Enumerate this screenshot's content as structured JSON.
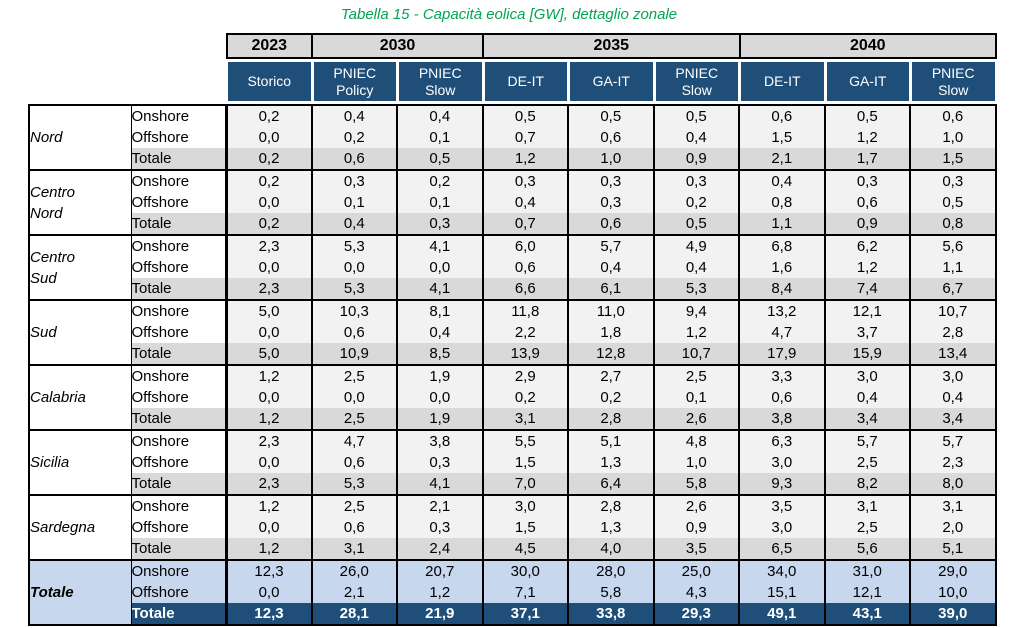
{
  "title": "Tabella 15 - Capacità eolica [GW], dettaglio zonale",
  "colors": {
    "title_green": "#00A551",
    "header_navy": "#1F4E79",
    "year_band_gray": "#D9D9D9",
    "subtotal_gray": "#D9D9D9",
    "cell_light_gray": "#F2F2F2",
    "total_light_blue": "#C7D7EE"
  },
  "header": {
    "year_groups": [
      {
        "label": "2023"
      },
      {
        "label": "2030"
      },
      {
        "label": "2035"
      },
      {
        "label": "2040"
      }
    ],
    "scenarios": [
      "Storico",
      "PNIEC\nPolicy",
      "PNIEC\nSlow",
      "DE-IT",
      "GA-IT",
      "PNIEC\nSlow",
      "DE-IT",
      "GA-IT",
      "PNIEC\nSlow"
    ]
  },
  "zones": [
    {
      "name": "Nord",
      "rows": [
        {
          "label": "Onshore",
          "values": [
            "0,2",
            "0,4",
            "0,4",
            "0,5",
            "0,5",
            "0,5",
            "0,6",
            "0,5",
            "0,6"
          ]
        },
        {
          "label": "Offshore",
          "values": [
            "0,0",
            "0,2",
            "0,1",
            "0,7",
            "0,6",
            "0,4",
            "1,5",
            "1,2",
            "1,0"
          ]
        },
        {
          "label": "Totale",
          "values": [
            "0,2",
            "0,6",
            "0,5",
            "1,2",
            "1,0",
            "0,9",
            "2,1",
            "1,7",
            "1,5"
          ]
        }
      ]
    },
    {
      "name": "Centro\nNord",
      "rows": [
        {
          "label": "Onshore",
          "values": [
            "0,2",
            "0,3",
            "0,2",
            "0,3",
            "0,3",
            "0,3",
            "0,4",
            "0,3",
            "0,3"
          ]
        },
        {
          "label": "Offshore",
          "values": [
            "0,0",
            "0,1",
            "0,1",
            "0,4",
            "0,3",
            "0,2",
            "0,8",
            "0,6",
            "0,5"
          ]
        },
        {
          "label": "Totale",
          "values": [
            "0,2",
            "0,4",
            "0,3",
            "0,7",
            "0,6",
            "0,5",
            "1,1",
            "0,9",
            "0,8"
          ]
        }
      ]
    },
    {
      "name": "Centro\nSud",
      "rows": [
        {
          "label": "Onshore",
          "values": [
            "2,3",
            "5,3",
            "4,1",
            "6,0",
            "5,7",
            "4,9",
            "6,8",
            "6,2",
            "5,6"
          ]
        },
        {
          "label": "Offshore",
          "values": [
            "0,0",
            "0,0",
            "0,0",
            "0,6",
            "0,4",
            "0,4",
            "1,6",
            "1,2",
            "1,1"
          ]
        },
        {
          "label": "Totale",
          "values": [
            "2,3",
            "5,3",
            "4,1",
            "6,6",
            "6,1",
            "5,3",
            "8,4",
            "7,4",
            "6,7"
          ]
        }
      ]
    },
    {
      "name": "Sud",
      "rows": [
        {
          "label": "Onshore",
          "values": [
            "5,0",
            "10,3",
            "8,1",
            "11,8",
            "11,0",
            "9,4",
            "13,2",
            "12,1",
            "10,7"
          ]
        },
        {
          "label": "Offshore",
          "values": [
            "0,0",
            "0,6",
            "0,4",
            "2,2",
            "1,8",
            "1,2",
            "4,7",
            "3,7",
            "2,8"
          ]
        },
        {
          "label": "Totale",
          "values": [
            "5,0",
            "10,9",
            "8,5",
            "13,9",
            "12,8",
            "10,7",
            "17,9",
            "15,9",
            "13,4"
          ]
        }
      ]
    },
    {
      "name": "Calabria",
      "rows": [
        {
          "label": "Onshore",
          "values": [
            "1,2",
            "2,5",
            "1,9",
            "2,9",
            "2,7",
            "2,5",
            "3,3",
            "3,0",
            "3,0"
          ]
        },
        {
          "label": "Offshore",
          "values": [
            "0,0",
            "0,0",
            "0,0",
            "0,2",
            "0,2",
            "0,1",
            "0,6",
            "0,4",
            "0,4"
          ]
        },
        {
          "label": "Totale",
          "values": [
            "1,2",
            "2,5",
            "1,9",
            "3,1",
            "2,8",
            "2,6",
            "3,8",
            "3,4",
            "3,4"
          ]
        }
      ]
    },
    {
      "name": "Sicilia",
      "rows": [
        {
          "label": "Onshore",
          "values": [
            "2,3",
            "4,7",
            "3,8",
            "5,5",
            "5,1",
            "4,8",
            "6,3",
            "5,7",
            "5,7"
          ]
        },
        {
          "label": "Offshore",
          "values": [
            "0,0",
            "0,6",
            "0,3",
            "1,5",
            "1,3",
            "1,0",
            "3,0",
            "2,5",
            "2,3"
          ]
        },
        {
          "label": "Totale",
          "values": [
            "2,3",
            "5,3",
            "4,1",
            "7,0",
            "6,4",
            "5,8",
            "9,3",
            "8,2",
            "8,0"
          ]
        }
      ]
    },
    {
      "name": "Sardegna",
      "rows": [
        {
          "label": "Onshore",
          "values": [
            "1,2",
            "2,5",
            "2,1",
            "3,0",
            "2,8",
            "2,6",
            "3,5",
            "3,1",
            "3,1"
          ]
        },
        {
          "label": "Offshore",
          "values": [
            "0,0",
            "0,6",
            "0,3",
            "1,5",
            "1,3",
            "0,9",
            "3,0",
            "2,5",
            "2,0"
          ]
        },
        {
          "label": "Totale",
          "values": [
            "1,2",
            "3,1",
            "2,4",
            "4,5",
            "4,0",
            "3,5",
            "6,5",
            "5,6",
            "5,1"
          ]
        }
      ]
    },
    {
      "name": "Totale",
      "rows": [
        {
          "label": "Onshore",
          "values": [
            "12,3",
            "26,0",
            "20,7",
            "30,0",
            "28,0",
            "25,0",
            "34,0",
            "31,0",
            "29,0"
          ]
        },
        {
          "label": "Offshore",
          "values": [
            "0,0",
            "2,1",
            "1,2",
            "7,1",
            "5,8",
            "4,3",
            "15,1",
            "12,1",
            "10,0"
          ]
        },
        {
          "label": "Totale",
          "values": [
            "12,3",
            "28,1",
            "21,9",
            "37,1",
            "33,8",
            "29,3",
            "49,1",
            "43,1",
            "39,0"
          ]
        }
      ]
    }
  ]
}
